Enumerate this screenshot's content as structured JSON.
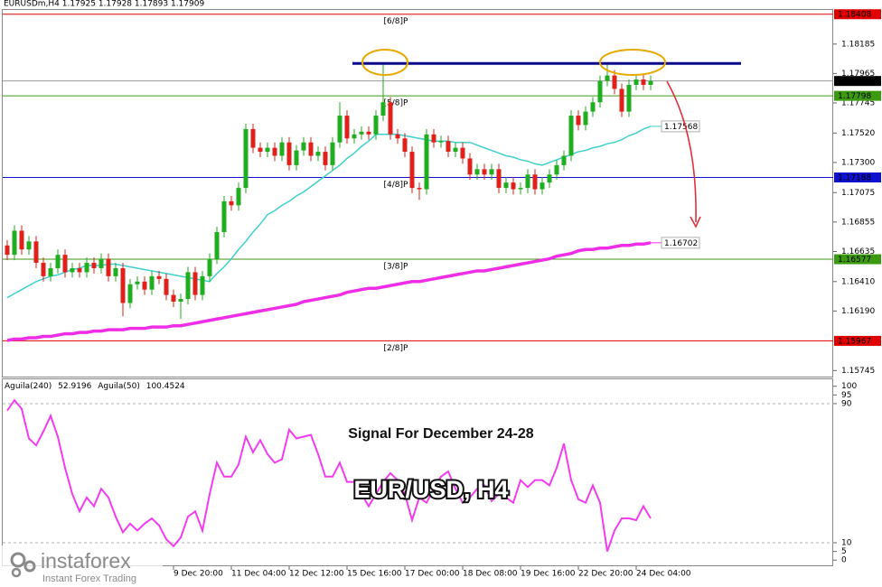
{
  "chart_data": [
    {
      "type": "candlestick",
      "title": "EURUSDm,H4 1.17925 1.17928 1.17893 1.17909",
      "categories": [
        null,
        null,
        null,
        null,
        null,
        null,
        null,
        null,
        null,
        null,
        null,
        null,
        null,
        null,
        null,
        null,
        null,
        null,
        null,
        null,
        null,
        null,
        null,
        "9 Dec 20:00",
        null,
        null,
        null,
        null,
        null,
        null,
        null,
        "11 Dec 04:00",
        null,
        null,
        null,
        null,
        null,
        null,
        null,
        "12 Dec 12:00",
        null,
        null,
        null,
        null,
        null,
        null,
        null,
        "15 Dec 16:00",
        null,
        null,
        null,
        null,
        null,
        null,
        null,
        "17 Dec 00:00",
        null,
        null,
        null,
        null,
        null,
        null,
        null,
        "18 Dec 08:00",
        null,
        null,
        null,
        null,
        null,
        null,
        null,
        "19 Dec 16:00",
        null,
        null,
        null,
        null,
        null,
        null,
        null,
        "22 Dec 20:00",
        null,
        null,
        null,
        null,
        null,
        null,
        null,
        "24 Dec 04:00",
        null,
        null
      ],
      "open": [
        1.1668,
        1.1661,
        1.1679,
        1.1665,
        1.1671,
        1.1655,
        1.1645,
        1.1651,
        1.1661,
        1.1648,
        1.1651,
        1.1648,
        1.1655,
        1.1651,
        1.1658,
        1.1645,
        1.1651,
        1.1625,
        1.1639,
        1.1641,
        1.1635,
        1.1645,
        1.1643,
        1.1631,
        1.1626,
        1.1628,
        1.1648,
        1.1631,
        1.1645,
        1.1658,
        1.1678,
        1.1701,
        1.1698,
        1.1711,
        1.1755,
        1.1741,
        1.1738,
        1.1741,
        1.1735,
        1.1745,
        1.1728,
        1.1739,
        1.1745,
        1.1735,
        1.1738,
        1.1728,
        1.1745,
        1.1765,
        1.1748,
        1.1751,
        1.1753,
        1.1751,
        1.1765,
        1.1775,
        1.1751,
        1.1748,
        1.1738,
        1.1711,
        1.171,
        1.1751,
        1.1745,
        1.1746,
        1.1738,
        1.1741,
        1.1733,
        1.1721,
        1.1725,
        1.1721,
        1.1725,
        1.1711,
        1.1715,
        1.171,
        1.1711,
        1.1721,
        1.171,
        1.1715,
        1.1721,
        1.1728,
        1.1735,
        1.1765,
        1.1758,
        1.1768,
        1.1775,
        1.1791,
        1.1795,
        1.1785,
        1.1768,
        1.1788,
        1.1792,
        1.1788
      ],
      "high": [
        1.1672,
        1.1683,
        1.1683,
        1.1675,
        1.1675,
        1.1659,
        1.1655,
        1.1665,
        1.1665,
        1.1655,
        1.1655,
        1.1659,
        1.1659,
        1.1662,
        1.1662,
        1.1655,
        1.1655,
        1.1643,
        1.1645,
        1.1645,
        1.1649,
        1.1649,
        1.1647,
        1.1635,
        1.1632,
        1.1652,
        1.1652,
        1.1649,
        1.1662,
        1.1682,
        1.1705,
        1.1705,
        1.1715,
        1.1759,
        1.1759,
        1.1745,
        1.1745,
        1.1745,
        1.1749,
        1.1749,
        1.1743,
        1.1749,
        1.1749,
        1.1742,
        1.1742,
        1.1749,
        1.1775,
        1.1769,
        1.1755,
        1.1757,
        1.1757,
        1.1769,
        1.1804,
        1.1779,
        1.1755,
        1.1752,
        1.1742,
        1.1715,
        1.1755,
        1.1755,
        1.175,
        1.175,
        1.1745,
        1.1745,
        1.1737,
        1.1729,
        1.1729,
        1.1729,
        1.1729,
        1.1719,
        1.1719,
        1.1715,
        1.1725,
        1.1725,
        1.1719,
        1.1725,
        1.1732,
        1.1739,
        1.1769,
        1.1769,
        1.1772,
        1.1779,
        1.1795,
        1.1805,
        1.1799,
        1.1789,
        1.1792,
        1.1796,
        1.1796,
        1.1795
      ],
      "low": [
        1.1657,
        1.1657,
        1.1661,
        1.1661,
        1.1651,
        1.1641,
        1.1641,
        1.1647,
        1.1644,
        1.1644,
        1.1644,
        1.1644,
        1.1647,
        1.1647,
        1.1641,
        1.1641,
        1.1615,
        1.1621,
        1.1635,
        1.1631,
        1.1631,
        1.1639,
        1.1627,
        1.1622,
        1.1613,
        1.1624,
        1.1627,
        1.1627,
        1.1641,
        1.1654,
        1.1674,
        1.1694,
        1.1694,
        1.1707,
        1.1737,
        1.1734,
        1.1734,
        1.1731,
        1.1731,
        1.1724,
        1.1724,
        1.1735,
        1.1731,
        1.1731,
        1.1724,
        1.1724,
        1.1741,
        1.1744,
        1.1744,
        1.1747,
        1.1747,
        1.1747,
        1.1761,
        1.1747,
        1.1744,
        1.1734,
        1.1707,
        1.1702,
        1.1706,
        1.1741,
        1.1741,
        1.1734,
        1.1734,
        1.1729,
        1.1717,
        1.1717,
        1.1717,
        1.1717,
        1.1707,
        1.1707,
        1.1706,
        1.1706,
        1.1707,
        1.1706,
        1.1706,
        1.1711,
        1.1717,
        1.1724,
        1.1731,
        1.1754,
        1.1754,
        1.1764,
        1.1771,
        1.1787,
        1.1781,
        1.1764,
        1.1764,
        1.1784,
        1.1784,
        1.1784
      ],
      "close": [
        1.1661,
        1.1679,
        1.1665,
        1.1671,
        1.1655,
        1.1645,
        1.1651,
        1.1661,
        1.1648,
        1.1651,
        1.1648,
        1.1655,
        1.1651,
        1.1658,
        1.1645,
        1.1651,
        1.1625,
        1.1639,
        1.1641,
        1.1635,
        1.1645,
        1.1643,
        1.1631,
        1.1626,
        1.1628,
        1.1648,
        1.1631,
        1.1645,
        1.1658,
        1.1678,
        1.1701,
        1.1698,
        1.1711,
        1.1755,
        1.1741,
        1.1738,
        1.1741,
        1.1735,
        1.1745,
        1.1728,
        1.1739,
        1.1745,
        1.1735,
        1.1738,
        1.1728,
        1.1745,
        1.1765,
        1.1748,
        1.1751,
        1.1753,
        1.1751,
        1.1765,
        1.1775,
        1.1751,
        1.1748,
        1.1738,
        1.1711,
        1.171,
        1.1751,
        1.1745,
        1.1746,
        1.1738,
        1.1741,
        1.1733,
        1.1721,
        1.1725,
        1.1721,
        1.1725,
        1.1711,
        1.1715,
        1.171,
        1.1711,
        1.1721,
        1.171,
        1.1715,
        1.1721,
        1.1728,
        1.1735,
        1.1765,
        1.1758,
        1.1768,
        1.1775,
        1.1791,
        1.1795,
        1.1785,
        1.1768,
        1.1788,
        1.1792,
        1.1788,
        1.1791
      ],
      "up_color": "#1fae1f",
      "down_color": "#e0201a",
      "ylim": [
        1.157,
        1.1844
      ],
      "yticks": [
        1.18185,
        1.17965,
        1.17745,
        {
          "value": 1.1752,
          "label": "1.17520"
        },
        {
          "value": 1.173,
          "label": "1.17300"
        },
        1.17075,
        1.16855,
        1.16635,
        {
          "value": 1.1641,
          "label": "1.16410"
        },
        {
          "value": 1.1619,
          "label": "1.16190"
        },
        1.15745
      ],
      "current_price": 1.17909,
      "levels": [
        {
          "label": "[6/8]P",
          "value": 1.18408,
          "color": "#e00000",
          "text_color": "#ffffff"
        },
        {
          "label": "[5/8]P",
          "value": 1.17798,
          "color": "#3c9a10",
          "text_color": "#000000"
        },
        {
          "label": "[4/8]P",
          "value": 1.17188,
          "color": "#1010d0",
          "text_color": "#ffffff"
        },
        {
          "label": "[3/8]P",
          "value": 1.16577,
          "color": "#3c9a10",
          "text_color": "#000000"
        },
        {
          "label": "[2/8]P",
          "value": 1.15967,
          "color": "#e00000",
          "text_color": "#ffffff"
        }
      ],
      "resistance": {
        "value": 1.1804,
        "color": "#0a0a8c"
      },
      "series": [
        {
          "color": "#3fd0cc",
          "width": 1.5,
          "end_label": 1.17568,
          "values": [
            1.1629,
            1.1632,
            1.1635,
            1.1638,
            1.1641,
            1.1643,
            1.1645,
            1.1646,
            1.1648,
            1.165,
            1.1651,
            1.1653,
            1.1653,
            1.1653,
            1.1654,
            1.1654,
            1.1653,
            1.1652,
            1.1651,
            1.165,
            1.1649,
            1.1648,
            1.1647,
            1.1646,
            1.1645,
            1.1644,
            1.1643,
            1.1642,
            1.1641,
            1.1647,
            1.1652,
            1.1658,
            1.1665,
            1.1671,
            1.1678,
            1.1684,
            1.1691,
            1.1694,
            1.1698,
            1.1701,
            1.1705,
            1.1708,
            1.1712,
            1.1716,
            1.172,
            1.1724,
            1.1728,
            1.1733,
            1.1737,
            1.1742,
            1.1746,
            1.1751,
            1.1751,
            1.1751,
            1.1751,
            1.175,
            1.1749,
            1.1748,
            1.1747,
            1.1746,
            1.1746,
            1.1746,
            1.1745,
            1.1745,
            1.1745,
            1.1743,
            1.1741,
            1.1739,
            1.1737,
            1.1735,
            1.1734,
            1.1732,
            1.1731,
            1.1729,
            1.1728,
            1.173,
            1.1732,
            1.1734,
            1.1736,
            1.1738,
            1.1739,
            1.1741,
            1.1742,
            1.1744,
            1.1745,
            1.1747,
            1.175,
            1.1752,
            1.1755,
            1.1757
          ]
        },
        {
          "color": "#ee2ee6",
          "width": 3.5,
          "end_label": 1.16702,
          "values": [
            1.1597,
            1.1598,
            1.1598,
            1.1599,
            1.1599,
            1.16,
            1.16,
            1.1601,
            1.1602,
            1.1602,
            1.1603,
            1.1603,
            1.1604,
            1.1604,
            1.1605,
            1.1605,
            1.1605,
            1.1606,
            1.1606,
            1.1606,
            1.1607,
            1.1607,
            1.1607,
            1.1608,
            1.1608,
            1.1609,
            1.161,
            1.1611,
            1.1612,
            1.1613,
            1.1614,
            1.1615,
            1.1616,
            1.1617,
            1.1618,
            1.1619,
            1.162,
            1.1621,
            1.1622,
            1.1623,
            1.1624,
            1.1626,
            1.1627,
            1.1628,
            1.1629,
            1.163,
            1.1631,
            1.1633,
            1.1634,
            1.1635,
            1.1636,
            1.1636,
            1.1637,
            1.1638,
            1.1639,
            1.164,
            1.1641,
            1.1641,
            1.1642,
            1.1643,
            1.1644,
            1.1645,
            1.1646,
            1.1647,
            1.1648,
            1.1649,
            1.1649,
            1.165,
            1.1651,
            1.1652,
            1.1653,
            1.1654,
            1.1655,
            1.1656,
            1.1657,
            1.1658,
            1.166,
            1.1661,
            1.1662,
            1.1664,
            1.1665,
            1.1665,
            1.1666,
            1.1666,
            1.1667,
            1.1668,
            1.1668,
            1.1669,
            1.1669,
            1.167
          ]
        }
      ]
    },
    {
      "type": "line",
      "indicators": [
        {
          "name": "Aguila(240)",
          "value": 52.9196
        },
        {
          "name": "Aguila(50)",
          "value": 100.4524
        }
      ],
      "series": [
        {
          "color": "#f23cf0",
          "values": [
            86,
            92,
            87,
            70,
            66,
            74,
            83,
            71,
            53,
            38,
            28,
            36,
            31,
            41,
            36,
            25,
            16,
            21,
            17,
            21,
            24,
            20,
            12,
            8,
            13,
            25,
            28,
            17,
            38,
            56,
            48,
            48,
            55,
            71,
            62,
            69,
            61,
            56,
            58,
            75,
            70,
            71,
            72,
            61,
            48,
            48,
            56,
            45,
            45,
            38,
            31,
            38,
            45,
            50,
            46,
            38,
            23,
            36,
            33,
            41,
            48,
            51,
            41,
            33,
            36,
            41,
            43,
            34,
            38,
            36,
            33,
            46,
            42,
            46,
            46,
            43,
            53,
            67,
            46,
            35,
            33,
            43,
            33,
            5,
            17,
            24,
            24,
            23,
            31,
            24
          ]
        }
      ],
      "ylim": [
        -3,
        104
      ],
      "yticks": [
        100,
        95,
        90,
        10,
        5,
        0
      ],
      "levels": [
        90,
        10
      ],
      "annotations": [
        "Signal For December 24-28",
        "EUR/USD, H4"
      ]
    }
  ],
  "branding": {
    "name": "instaforex",
    "tagline": "Instant Forex Trading"
  }
}
